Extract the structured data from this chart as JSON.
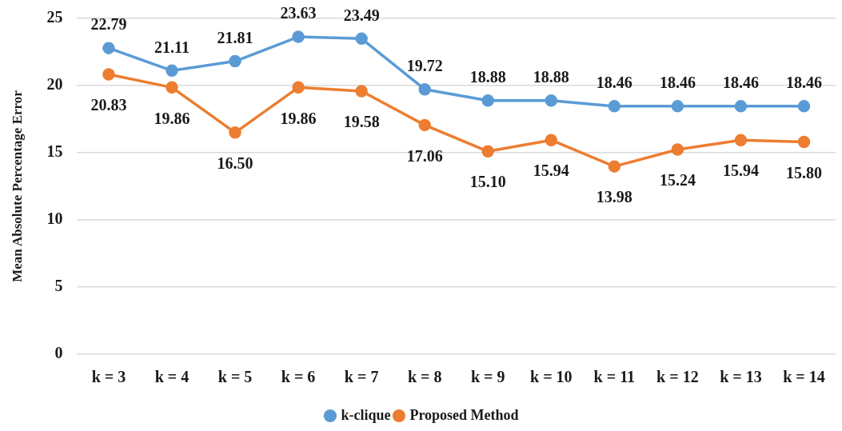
{
  "chart_data": {
    "type": "line",
    "ylabel": "Mean Absolute Percentage Error",
    "categories": [
      "k = 3",
      "k = 4",
      "k = 5",
      "k = 6",
      "k = 7",
      "k = 8",
      "k = 9",
      "k = 10",
      "k = 11",
      "k = 12",
      "k = 13",
      "k = 14"
    ],
    "series": [
      {
        "name": "k-clique",
        "color": "#5b9bd5",
        "values": [
          22.79,
          21.11,
          21.81,
          23.63,
          23.49,
          19.72,
          18.88,
          18.88,
          18.46,
          18.46,
          18.46,
          18.46
        ],
        "value_labels": [
          "22.79",
          "21.11",
          "21.81",
          "23.63",
          "23.49",
          "19.72",
          "18.88",
          "18.88",
          "18.46",
          "18.46",
          "18.46",
          "18.46"
        ]
      },
      {
        "name": "Proposed Method",
        "color": "#ed7d31",
        "values": [
          20.83,
          19.86,
          16.5,
          19.86,
          19.58,
          17.06,
          15.1,
          15.94,
          13.98,
          15.24,
          15.94,
          15.8
        ],
        "value_labels": [
          "20.83",
          "19.86",
          "16.50",
          "19.86",
          "19.58",
          "17.06",
          "15.10",
          "15.94",
          "13.98",
          "15.24",
          "15.94",
          "15.80"
        ]
      }
    ],
    "ylim": [
      0,
      25
    ],
    "yticks": [
      0,
      5,
      10,
      15,
      20,
      25
    ],
    "grid": "y",
    "legend": "bottom",
    "marker": "circle",
    "line_style": "solid"
  }
}
